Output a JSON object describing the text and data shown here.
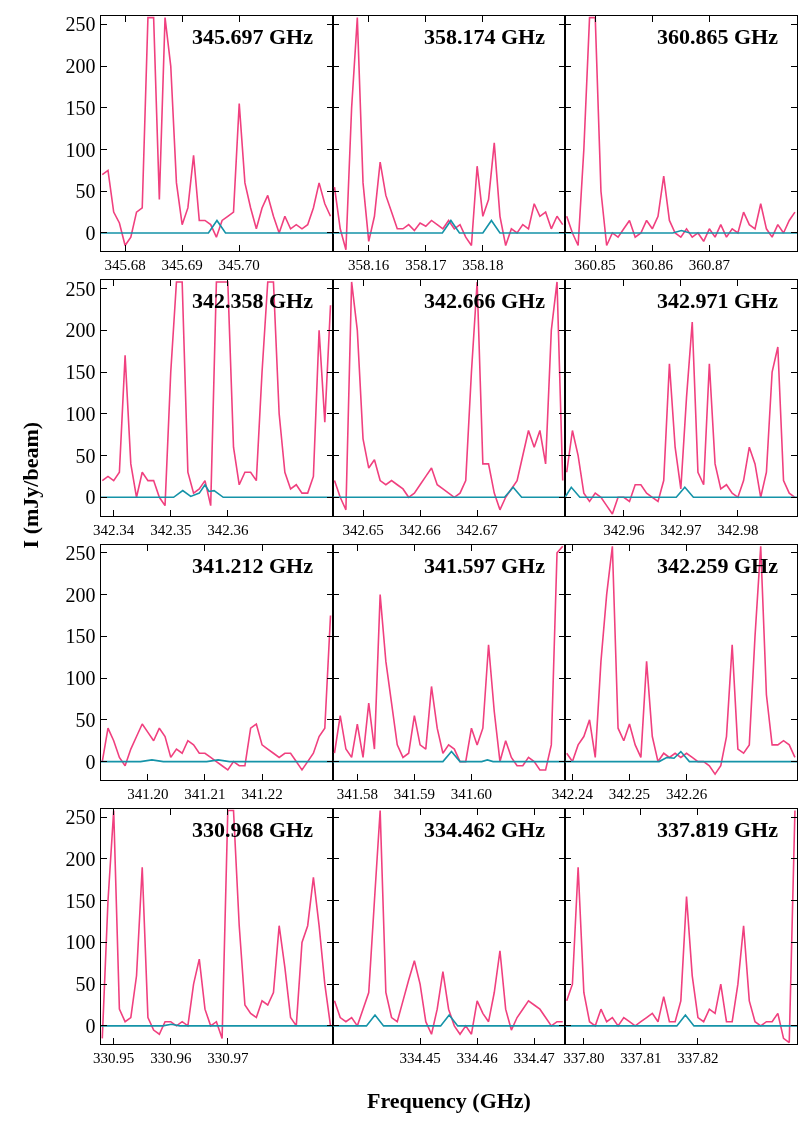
{
  "chart_data": [
    {
      "type": "line",
      "title": "345.697 GHz",
      "xlim": [
        345.6757,
        345.7164
      ],
      "xticks": [
        345.68,
        345.69,
        {
          "value": 345.7,
          "label": "345.70"
        }
      ],
      "ylim": [
        -22,
        260
      ],
      "yticks": [
        0,
        50,
        100,
        150,
        200,
        250
      ],
      "x": [
        345.676,
        345.677,
        345.678,
        345.679,
        345.68,
        345.681,
        345.682,
        345.683,
        345.684,
        345.685,
        345.686,
        345.687,
        345.688,
        345.689,
        345.69,
        345.691,
        345.692,
        345.693,
        345.694,
        345.695,
        345.696,
        345.697,
        345.698,
        345.699,
        345.7,
        345.701,
        345.702,
        345.703,
        345.704,
        345.705,
        345.706,
        345.707,
        345.708,
        345.709,
        345.71,
        345.711,
        345.712,
        345.713,
        345.714,
        345.715,
        345.716
      ],
      "series": [
        {
          "color": "#f0407f",
          "values": [
            70,
            75,
            25,
            12,
            -15,
            -5,
            25,
            30,
            258,
            258,
            40,
            258,
            200,
            60,
            10,
            30,
            93,
            15,
            15,
            10,
            -5,
            15,
            20,
            25,
            155,
            60,
            30,
            5,
            30,
            45,
            20,
            0,
            20,
            5,
            10,
            5,
            10,
            30,
            60,
            35,
            20
          ]
        },
        {
          "color": "#1593a8",
          "x": [
            345.6757,
            345.6946,
            345.6961,
            345.6976,
            345.7164
          ],
          "values": [
            0,
            0,
            15,
            0,
            0
          ]
        }
      ]
    },
    {
      "type": "line",
      "title": "358.174 GHz",
      "tick_labels": "x",
      "xlim": [
        358.1537,
        358.1944
      ],
      "xticks": [
        358.16,
        358.17,
        358.18
      ],
      "ylim": [
        -22,
        260
      ],
      "yticks": [
        0,
        50,
        100,
        150,
        200,
        250
      ],
      "x": [
        358.154,
        358.155,
        358.156,
        358.157,
        358.158,
        358.159,
        358.16,
        358.161,
        358.162,
        358.163,
        358.164,
        358.165,
        358.166,
        358.167,
        358.168,
        358.169,
        358.17,
        358.171,
        358.172,
        358.173,
        358.174,
        358.175,
        358.176,
        358.177,
        358.178,
        358.179,
        358.18,
        358.181,
        358.182,
        358.183,
        358.184,
        358.185,
        358.186,
        358.187,
        358.188,
        358.189,
        358.19,
        358.191,
        358.192,
        358.193,
        358.194
      ],
      "series": [
        {
          "color": "#f0407f",
          "values": [
            55,
            5,
            -20,
            150,
            258,
            60,
            -10,
            20,
            85,
            45,
            25,
            5,
            5,
            10,
            3,
            12,
            8,
            15,
            10,
            5,
            15,
            5,
            10,
            -5,
            -15,
            80,
            20,
            40,
            108,
            20,
            -15,
            5,
            0,
            10,
            5,
            35,
            20,
            25,
            5,
            20,
            10
          ]
        },
        {
          "color": "#1593a8",
          "x": [
            358.1537,
            358.1729,
            358.1744,
            358.1759,
            358.18,
            358.1815,
            358.183,
            358.1944
          ],
          "values": [
            0,
            0,
            15,
            0,
            0,
            15,
            0,
            0
          ]
        }
      ]
    },
    {
      "type": "line",
      "title": "360.865 GHz",
      "tick_labels": "x",
      "xlim": [
        360.8447,
        360.8854
      ],
      "xticks": [
        360.85,
        360.86,
        360.87
      ],
      "ylim": [
        -22,
        260
      ],
      "yticks": [
        0,
        50,
        100,
        150,
        200,
        250
      ],
      "x": [
        360.845,
        360.846,
        360.847,
        360.848,
        360.849,
        360.85,
        360.851,
        360.852,
        360.853,
        360.854,
        360.855,
        360.856,
        360.857,
        360.858,
        360.859,
        360.86,
        360.861,
        360.862,
        360.863,
        360.864,
        360.865,
        360.866,
        360.867,
        360.868,
        360.869,
        360.87,
        360.871,
        360.872,
        360.873,
        360.874,
        360.875,
        360.876,
        360.877,
        360.878,
        360.879,
        360.88,
        360.881,
        360.882,
        360.883,
        360.884,
        360.885
      ],
      "series": [
        {
          "color": "#f0407f",
          "values": [
            20,
            0,
            -15,
            100,
            258,
            258,
            50,
            -15,
            0,
            -5,
            5,
            15,
            -5,
            0,
            15,
            5,
            20,
            68,
            15,
            0,
            -5,
            5,
            -5,
            0,
            -10,
            5,
            -5,
            10,
            -5,
            5,
            0,
            25,
            10,
            5,
            35,
            5,
            -5,
            10,
            0,
            15,
            25
          ]
        },
        {
          "color": "#1593a8",
          "x": [
            360.8447,
            360.8636,
            360.8651,
            360.8666,
            360.8854
          ],
          "values": [
            0,
            0,
            3,
            0,
            0
          ]
        }
      ]
    },
    {
      "type": "line",
      "title": "342.358 GHz",
      "ylabel": "I (mJy/beam)",
      "xlim": [
        342.3377,
        342.3784
      ],
      "xticks": [
        342.34,
        342.35,
        342.36
      ],
      "ylim": [
        -22,
        260
      ],
      "yticks": [
        0,
        50,
        100,
        150,
        200,
        250
      ],
      "x": [
        342.338,
        342.339,
        342.34,
        342.341,
        342.342,
        342.343,
        342.344,
        342.345,
        342.346,
        342.347,
        342.348,
        342.349,
        342.35,
        342.351,
        342.352,
        342.353,
        342.354,
        342.355,
        342.356,
        342.357,
        342.358,
        342.359,
        342.36,
        342.361,
        342.362,
        342.363,
        342.364,
        342.365,
        342.366,
        342.367,
        342.368,
        342.369,
        342.37,
        342.371,
        342.372,
        342.373,
        342.374,
        342.375,
        342.376,
        342.377,
        342.378
      ],
      "series": [
        {
          "color": "#f0407f",
          "values": [
            20,
            25,
            20,
            30,
            170,
            40,
            0,
            30,
            20,
            20,
            0,
            -10,
            150,
            258,
            258,
            30,
            5,
            10,
            20,
            -10,
            258,
            258,
            258,
            60,
            15,
            30,
            30,
            20,
            150,
            258,
            258,
            100,
            30,
            10,
            15,
            5,
            5,
            25,
            200,
            90,
            230
          ]
        },
        {
          "color": "#1593a8",
          "x": [
            342.3377,
            342.3505,
            342.3521,
            342.3535,
            342.355,
            342.356,
            342.3567,
            342.3576,
            342.3592,
            342.3784
          ],
          "values": [
            0,
            0,
            8,
            1,
            5,
            15,
            7,
            8,
            0,
            0
          ]
        }
      ]
    },
    {
      "type": "line",
      "title": "342.666 GHz",
      "tick_labels": "x",
      "xlim": [
        342.6447,
        342.6854
      ],
      "xticks": [
        342.65,
        342.66,
        342.67
      ],
      "ylim": [
        -22,
        260
      ],
      "yticks": [
        0,
        50,
        100,
        150,
        200,
        250
      ],
      "x": [
        342.645,
        342.646,
        342.647,
        342.648,
        342.649,
        342.65,
        342.651,
        342.652,
        342.653,
        342.654,
        342.655,
        342.656,
        342.657,
        342.658,
        342.659,
        342.66,
        342.661,
        342.662,
        342.663,
        342.664,
        342.665,
        342.666,
        342.667,
        342.668,
        342.669,
        342.67,
        342.671,
        342.672,
        342.673,
        342.674,
        342.675,
        342.676,
        342.677,
        342.678,
        342.679,
        342.68,
        342.681,
        342.682,
        342.683,
        342.684,
        342.685
      ],
      "series": [
        {
          "color": "#f0407f",
          "values": [
            20,
            0,
            -15,
            258,
            200,
            70,
            35,
            45,
            20,
            15,
            20,
            15,
            10,
            0,
            5,
            15,
            25,
            35,
            15,
            10,
            5,
            0,
            5,
            20,
            150,
            258,
            40,
            40,
            5,
            -15,
            0,
            10,
            20,
            50,
            80,
            60,
            80,
            40,
            200,
            258,
            20
          ]
        },
        {
          "color": "#1593a8",
          "x": [
            342.6447,
            342.6748,
            342.6763,
            342.6778,
            342.6854
          ],
          "values": [
            0,
            0,
            12,
            0,
            0
          ]
        }
      ]
    },
    {
      "type": "line",
      "title": "342.971 GHz",
      "tick_labels": "x",
      "xlim": [
        342.9497,
        342.9904
      ],
      "xticks": [
        342.96,
        342.97,
        342.98
      ],
      "ylim": [
        -22,
        260
      ],
      "yticks": [
        0,
        50,
        100,
        150,
        200,
        250
      ],
      "x": [
        342.95,
        342.951,
        342.952,
        342.953,
        342.954,
        342.955,
        342.956,
        342.957,
        342.958,
        342.959,
        342.96,
        342.961,
        342.962,
        342.963,
        342.964,
        342.965,
        342.966,
        342.967,
        342.968,
        342.969,
        342.97,
        342.971,
        342.972,
        342.973,
        342.974,
        342.975,
        342.976,
        342.977,
        342.978,
        342.979,
        342.98,
        342.981,
        342.982,
        342.983,
        342.984,
        342.985,
        342.986,
        342.987,
        342.988,
        342.989,
        342.99
      ],
      "series": [
        {
          "color": "#f0407f",
          "values": [
            30,
            80,
            50,
            5,
            -5,
            5,
            0,
            -10,
            -20,
            0,
            0,
            -5,
            15,
            15,
            5,
            0,
            -5,
            20,
            160,
            60,
            10,
            120,
            210,
            30,
            15,
            160,
            40,
            10,
            15,
            5,
            0,
            20,
            60,
            40,
            0,
            30,
            150,
            180,
            20,
            5,
            0
          ]
        },
        {
          "color": "#1593a8",
          "x": [
            342.9497,
            342.9508,
            342.9523,
            342.9692,
            342.9707,
            342.9722,
            342.9904
          ],
          "values": [
            0,
            12,
            0,
            0,
            12,
            0,
            0
          ]
        }
      ]
    },
    {
      "type": "line",
      "title": "341.212 GHz",
      "xlim": [
        341.1917,
        341.2324
      ],
      "xticks": [
        {
          "value": 341.2,
          "label": "341.20"
        },
        341.21,
        341.22
      ],
      "ylim": [
        -22,
        260
      ],
      "yticks": [
        0,
        50,
        100,
        150,
        200,
        250
      ],
      "x": [
        341.192,
        341.193,
        341.194,
        341.195,
        341.196,
        341.197,
        341.198,
        341.199,
        341.2,
        341.201,
        341.202,
        341.203,
        341.204,
        341.205,
        341.206,
        341.207,
        341.208,
        341.209,
        341.21,
        341.211,
        341.212,
        341.213,
        341.214,
        341.215,
        341.216,
        341.217,
        341.218,
        341.219,
        341.22,
        341.221,
        341.222,
        341.223,
        341.224,
        341.225,
        341.226,
        341.227,
        341.228,
        341.229,
        341.23,
        341.231,
        341.232
      ],
      "series": [
        {
          "color": "#f0407f",
          "values": [
            0,
            40,
            25,
            5,
            -5,
            15,
            30,
            45,
            35,
            25,
            40,
            30,
            5,
            15,
            10,
            25,
            20,
            10,
            10,
            5,
            0,
            -5,
            -10,
            0,
            -5,
            -5,
            40,
            45,
            20,
            15,
            10,
            5,
            10,
            10,
            0,
            -10,
            0,
            10,
            30,
            40,
            175
          ]
        },
        {
          "color": "#1593a8",
          "x": [
            341.1917,
            341.1987,
            341.2007,
            341.2027,
            341.2103,
            341.2123,
            341.2143,
            341.2324
          ],
          "values": [
            0,
            0,
            2,
            0,
            0,
            2,
            0,
            0
          ]
        }
      ]
    },
    {
      "type": "line",
      "title": "341.597 GHz",
      "tick_labels": "x",
      "xlim": [
        341.5757,
        341.6164
      ],
      "xticks": [
        341.58,
        341.59,
        {
          "value": 341.6,
          "label": "341.60"
        }
      ],
      "ylim": [
        -22,
        260
      ],
      "yticks": [
        0,
        50,
        100,
        150,
        200,
        250
      ],
      "x": [
        341.576,
        341.577,
        341.578,
        341.579,
        341.58,
        341.581,
        341.582,
        341.583,
        341.584,
        341.585,
        341.586,
        341.587,
        341.588,
        341.589,
        341.59,
        341.591,
        341.592,
        341.593,
        341.594,
        341.595,
        341.596,
        341.597,
        341.598,
        341.599,
        341.6,
        341.601,
        341.602,
        341.603,
        341.604,
        341.605,
        341.606,
        341.607,
        341.608,
        341.609,
        341.61,
        341.611,
        341.612,
        341.613,
        341.614,
        341.615,
        341.616
      ],
      "series": [
        {
          "color": "#f0407f",
          "values": [
            10,
            55,
            15,
            5,
            45,
            5,
            70,
            15,
            200,
            120,
            70,
            20,
            5,
            10,
            55,
            20,
            15,
            90,
            40,
            10,
            20,
            15,
            0,
            0,
            40,
            20,
            40,
            140,
            60,
            0,
            25,
            5,
            -5,
            -5,
            5,
            0,
            -10,
            -10,
            20,
            250,
            258
          ]
        },
        {
          "color": "#1593a8",
          "x": [
            341.5757,
            341.595,
            341.5965,
            341.598,
            341.6018,
            341.6028,
            341.6038,
            341.6164
          ],
          "values": [
            0,
            0,
            12,
            0,
            0,
            2,
            0,
            0
          ]
        }
      ]
    },
    {
      "type": "line",
      "title": "342.259 GHz",
      "tick_labels": "x",
      "xlim": [
        342.2387,
        342.2794
      ],
      "xticks": [
        342.24,
        342.25,
        342.26
      ],
      "ylim": [
        -22,
        260
      ],
      "yticks": [
        0,
        50,
        100,
        150,
        200,
        250
      ],
      "x": [
        342.239,
        342.24,
        342.241,
        342.242,
        342.243,
        342.244,
        342.245,
        342.246,
        342.247,
        342.248,
        342.249,
        342.25,
        342.251,
        342.252,
        342.253,
        342.254,
        342.255,
        342.256,
        342.257,
        342.258,
        342.259,
        342.26,
        342.261,
        342.262,
        342.263,
        342.264,
        342.265,
        342.266,
        342.267,
        342.268,
        342.269,
        342.27,
        342.271,
        342.272,
        342.273,
        342.274,
        342.275,
        342.276,
        342.277,
        342.278,
        342.279
      ],
      "series": [
        {
          "color": "#f0407f",
          "values": [
            10,
            0,
            20,
            30,
            50,
            5,
            120,
            200,
            258,
            40,
            25,
            45,
            20,
            5,
            120,
            30,
            0,
            10,
            5,
            10,
            5,
            10,
            5,
            0,
            0,
            -5,
            -15,
            -5,
            30,
            140,
            15,
            10,
            20,
            150,
            258,
            80,
            20,
            20,
            25,
            20,
            5
          ]
        },
        {
          "color": "#1593a8",
          "x": [
            342.2387,
            342.2552,
            342.2566,
            342.2578,
            342.259,
            342.2605,
            342.2794
          ],
          "values": [
            0,
            0,
            5,
            4,
            12,
            0,
            0
          ]
        }
      ]
    },
    {
      "type": "line",
      "title": "330.968 GHz",
      "xlim": [
        330.9477,
        330.9884
      ],
      "xticks": [
        330.95,
        330.96,
        330.97
      ],
      "ylim": [
        -22,
        260
      ],
      "yticks": [
        0,
        50,
        100,
        150,
        200,
        250
      ],
      "x": [
        330.948,
        330.949,
        330.95,
        330.951,
        330.952,
        330.953,
        330.954,
        330.955,
        330.956,
        330.957,
        330.958,
        330.959,
        330.96,
        330.961,
        330.962,
        330.963,
        330.964,
        330.965,
        330.966,
        330.967,
        330.968,
        330.969,
        330.97,
        330.971,
        330.972,
        330.973,
        330.974,
        330.975,
        330.976,
        330.977,
        330.978,
        330.979,
        330.98,
        330.981,
        330.982,
        330.983,
        330.984,
        330.985,
        330.986,
        330.987,
        330.988
      ],
      "series": [
        {
          "color": "#f0407f",
          "values": [
            -15,
            150,
            258,
            20,
            5,
            10,
            60,
            190,
            10,
            -5,
            -10,
            5,
            5,
            0,
            5,
            0,
            50,
            80,
            20,
            0,
            5,
            -15,
            258,
            258,
            120,
            25,
            15,
            10,
            30,
            25,
            40,
            120,
            70,
            10,
            0,
            100,
            120,
            178,
            120,
            50,
            0
          ]
        },
        {
          "color": "#1593a8",
          "x": [
            330.9477,
            330.9586,
            330.9601,
            330.9616,
            330.9884
          ],
          "values": [
            0,
            0,
            2,
            0,
            0
          ]
        }
      ]
    },
    {
      "type": "line",
      "title": "334.462 GHz",
      "xlabel": "Frequency (GHz)",
      "tick_labels": "x",
      "xlim": [
        334.4347,
        334.4754
      ],
      "xticks": [
        334.45,
        334.46,
        334.47
      ],
      "ylim": [
        -22,
        260
      ],
      "yticks": [
        0,
        50,
        100,
        150,
        200,
        250
      ],
      "x": [
        334.435,
        334.436,
        334.437,
        334.438,
        334.439,
        334.44,
        334.441,
        334.442,
        334.443,
        334.444,
        334.445,
        334.446,
        334.447,
        334.448,
        334.449,
        334.45,
        334.451,
        334.452,
        334.453,
        334.454,
        334.455,
        334.456,
        334.457,
        334.458,
        334.459,
        334.46,
        334.461,
        334.462,
        334.463,
        334.464,
        334.465,
        334.466,
        334.467,
        334.468,
        334.469,
        334.47,
        334.471,
        334.472,
        334.473,
        334.474,
        334.475
      ],
      "series": [
        {
          "color": "#f0407f",
          "values": [
            30,
            10,
            5,
            10,
            0,
            20,
            40,
            150,
            258,
            40,
            10,
            5,
            30,
            55,
            78,
            50,
            5,
            -10,
            20,
            65,
            20,
            0,
            -10,
            0,
            -10,
            30,
            15,
            5,
            40,
            90,
            20,
            -5,
            10,
            20,
            30,
            25,
            20,
            10,
            0,
            5,
            5
          ]
        },
        {
          "color": "#1593a8",
          "x": [
            334.4347,
            334.4406,
            334.4421,
            334.4436,
            334.4536,
            334.4551,
            334.4566,
            334.4754
          ],
          "values": [
            0,
            0,
            13,
            0,
            0,
            13,
            0,
            0
          ]
        }
      ]
    },
    {
      "type": "line",
      "title": "337.819 GHz",
      "tick_labels": "x",
      "xlim": [
        337.7967,
        337.8374
      ],
      "xticks": [
        {
          "value": 337.8,
          "label": "337.80"
        },
        337.81,
        337.82
      ],
      "ylim": [
        -22,
        260
      ],
      "yticks": [
        0,
        50,
        100,
        150,
        200,
        250
      ],
      "x": [
        337.797,
        337.798,
        337.799,
        337.8,
        337.801,
        337.802,
        337.803,
        337.804,
        337.805,
        337.806,
        337.807,
        337.808,
        337.809,
        337.81,
        337.811,
        337.812,
        337.813,
        337.814,
        337.815,
        337.816,
        337.817,
        337.818,
        337.819,
        337.82,
        337.821,
        337.822,
        337.823,
        337.824,
        337.825,
        337.826,
        337.827,
        337.828,
        337.829,
        337.83,
        337.831,
        337.832,
        337.833,
        337.834,
        337.835,
        337.836,
        337.837
      ],
      "series": [
        {
          "color": "#f0407f",
          "values": [
            30,
            50,
            190,
            40,
            5,
            0,
            20,
            5,
            10,
            0,
            10,
            5,
            0,
            5,
            10,
            15,
            5,
            35,
            5,
            5,
            30,
            155,
            60,
            10,
            5,
            20,
            15,
            50,
            5,
            5,
            50,
            120,
            30,
            5,
            0,
            5,
            5,
            15,
            -15,
            -20,
            258
          ]
        },
        {
          "color": "#1593a8",
          "x": [
            337.7967,
            337.8163,
            337.8178,
            337.8193,
            337.8374
          ],
          "values": [
            0,
            0,
            13,
            0,
            0
          ]
        }
      ]
    }
  ]
}
